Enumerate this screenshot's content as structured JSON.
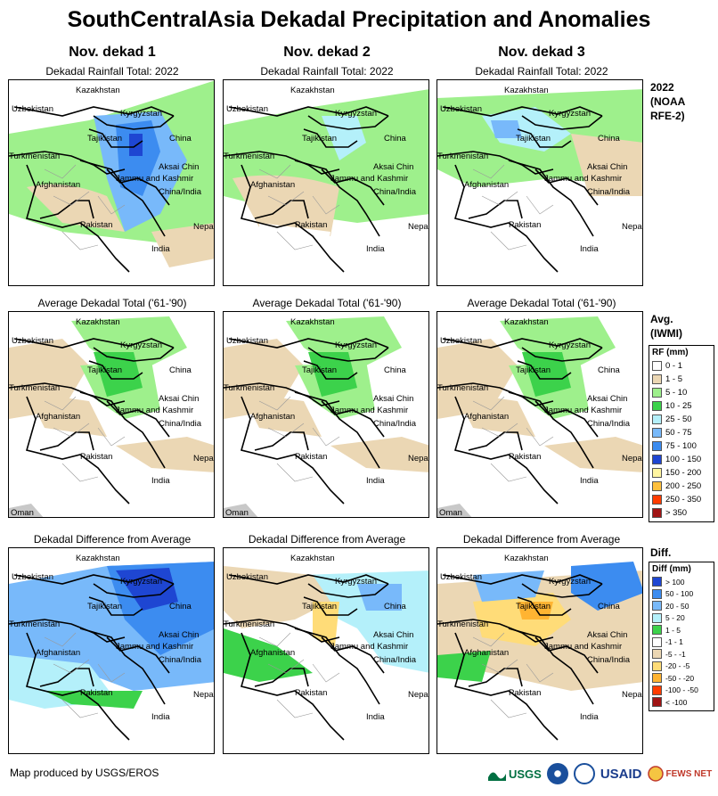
{
  "title": "SouthCentralAsia Dekadal Precipitation and Anomalies",
  "columns": [
    "Nov. dekad 1",
    "Nov. dekad 2",
    "Nov. dekad 3"
  ],
  "rows": [
    {
      "caption": "Dekadal Rainfall Total: 2022",
      "side_label": "2022 (NOAA RFE-2)"
    },
    {
      "caption": "Average Dekadal Total ('61-'90)",
      "side_label": "Avg. (IWMI)"
    },
    {
      "caption": "Dekadal Difference from Average",
      "side_label": "Diff."
    }
  ],
  "map_labels": {
    "kazakhstan": "Kazakhstan",
    "uzbekistan": "Uzbekistan",
    "kyrgyzstan": "Kyrgyzstan",
    "tajikistan": "Tajikistan",
    "turkmenistan": "Turkmenistan",
    "china": "China",
    "aksai_chin": "Aksai Chin",
    "jammu_kashmir": "Jammu and Kashmir",
    "china_india": "China/India",
    "afghanistan": "Afghanistan",
    "pakistan": "Pakistan",
    "nepal": "Nepal",
    "india": "India",
    "oman": "Oman"
  },
  "rf_legend": {
    "title": "RF (mm)",
    "items": [
      {
        "label": "0 - 1",
        "color": "#ffffff"
      },
      {
        "label": "1 - 5",
        "color": "#ebd7b4"
      },
      {
        "label": "5 - 10",
        "color": "#9ef08c"
      },
      {
        "label": "10 - 25",
        "color": "#3cd24b"
      },
      {
        "label": "25 - 50",
        "color": "#b4f0fa"
      },
      {
        "label": "50 - 75",
        "color": "#78b9fa"
      },
      {
        "label": "75 - 100",
        "color": "#3c8cf0"
      },
      {
        "label": "100 - 150",
        "color": "#1e46d2"
      },
      {
        "label": "150 - 200",
        "color": "#fff5a0"
      },
      {
        "label": "200 - 250",
        "color": "#ffc03c"
      },
      {
        "label": "250 - 350",
        "color": "#ff3c00"
      },
      {
        "label": "> 350",
        "color": "#a01414"
      }
    ]
  },
  "diff_legend": {
    "title": "Diff (mm)",
    "items": [
      {
        "label": "> 100",
        "color": "#1e46d2"
      },
      {
        "label": "50 - 100",
        "color": "#3c8cf0"
      },
      {
        "label": "20 - 50",
        "color": "#78b9fa"
      },
      {
        "label": "5 - 20",
        "color": "#b4f0fa"
      },
      {
        "label": "1 - 5",
        "color": "#3cd24b"
      },
      {
        "label": "-1 - 1",
        "color": "#ffffff"
      },
      {
        "label": "-5 - -1",
        "color": "#ebd7b4"
      },
      {
        "label": "-20 - -5",
        "color": "#ffdc78"
      },
      {
        "label": "-50 - -20",
        "color": "#ffb432"
      },
      {
        "label": "-100 - -50",
        "color": "#ff3c00"
      },
      {
        "label": "< -100",
        "color": "#a01414"
      }
    ]
  },
  "footer": "Map produced by USGS/EROS",
  "logos": {
    "usgs": "USGS",
    "usaid": "USAID",
    "fewsnet": "FEWS NET"
  }
}
